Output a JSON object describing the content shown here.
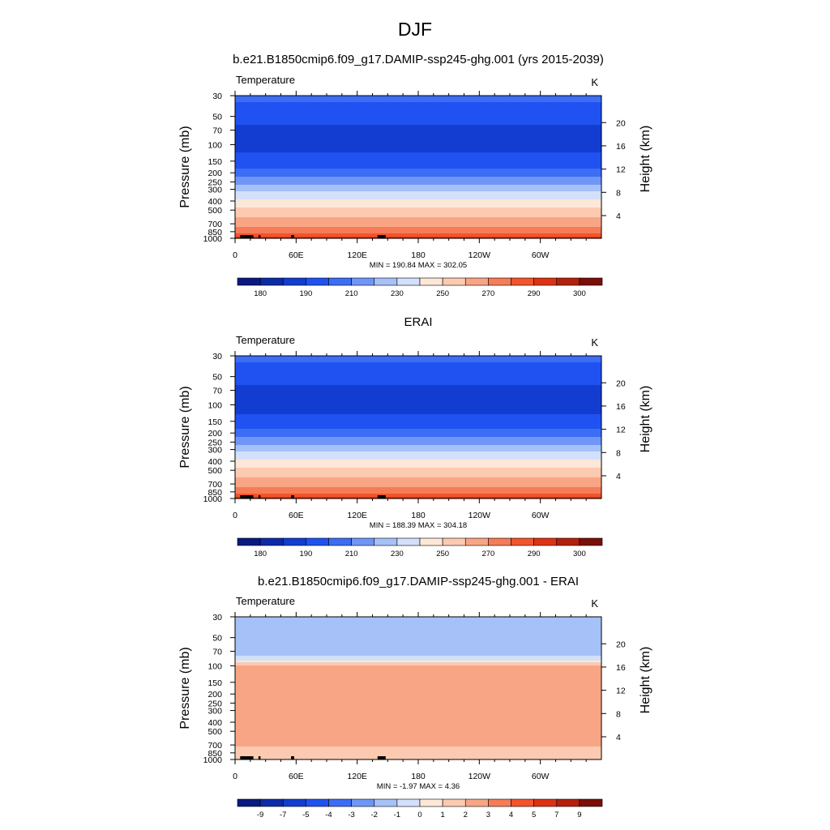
{
  "figure": {
    "title": "DJF",
    "unit": "K",
    "variable": "Temperature"
  },
  "chart_data": [
    {
      "type": "heatmap",
      "title": "b.e21.B1850cmip6.f09_g17.DAMIP-ssp245-ghg.001 (yrs 2015-2039)",
      "variable": "Temperature",
      "unit": "K",
      "xlabel": "",
      "ylabel": "Pressure (mb)",
      "y2label": "Height (km)",
      "x_ticks": [
        "0",
        "60E",
        "120E",
        "180",
        "120W",
        "60W"
      ],
      "x_tick_values": [
        0,
        60,
        120,
        180,
        240,
        300
      ],
      "xlim": [
        0,
        360
      ],
      "y_ticks": [
        "30",
        "50",
        "70",
        "100",
        "150",
        "200",
        "250",
        "300",
        "400",
        "500",
        "700",
        "850",
        "1000"
      ],
      "y_tick_values": [
        30,
        50,
        70,
        100,
        150,
        200,
        250,
        300,
        400,
        500,
        700,
        850,
        1000
      ],
      "ylim": [
        30,
        1000
      ],
      "y2_ticks": [
        "20",
        "16",
        "12",
        "8",
        "4"
      ],
      "y2_tick_values": [
        20,
        16,
        12,
        8,
        4
      ],
      "stats": "MIN = 190.84  MAX = 302.05",
      "min": 190.84,
      "max": 302.05,
      "levels": [
        180,
        185,
        190,
        200,
        210,
        220,
        230,
        240,
        250,
        260,
        270,
        280,
        290,
        295,
        300,
        305
      ],
      "level_labels": [
        "180",
        "190",
        "210",
        "230",
        "250",
        "270",
        "290",
        "300"
      ],
      "profile": [
        [
          30,
          212
        ],
        [
          50,
          205
        ],
        [
          70,
          196
        ],
        [
          100,
          196
        ],
        [
          150,
          204
        ],
        [
          200,
          214
        ],
        [
          250,
          226
        ],
        [
          300,
          237
        ],
        [
          400,
          252
        ],
        [
          500,
          262
        ],
        [
          700,
          277
        ],
        [
          850,
          286
        ],
        [
          1000,
          297
        ]
      ],
      "colors": [
        "#0a1a80",
        "#0d2aa8",
        "#123dd0",
        "#1f52f0",
        "#3c6df5",
        "#6f96f7",
        "#a6c1f8",
        "#d2e0fb",
        "#fde7d8",
        "#fbcab0",
        "#f8a585",
        "#f57c57",
        "#f2542c",
        "#de3214",
        "#b3200b",
        "#7a0e08"
      ]
    },
    {
      "type": "heatmap",
      "title": "ERAI",
      "variable": "Temperature",
      "unit": "K",
      "xlabel": "",
      "ylabel": "Pressure (mb)",
      "y2label": "Height (km)",
      "x_ticks": [
        "0",
        "60E",
        "120E",
        "180",
        "120W",
        "60W"
      ],
      "x_tick_values": [
        0,
        60,
        120,
        180,
        240,
        300
      ],
      "xlim": [
        0,
        360
      ],
      "y_ticks": [
        "30",
        "50",
        "70",
        "100",
        "150",
        "200",
        "250",
        "300",
        "400",
        "500",
        "700",
        "850",
        "1000"
      ],
      "y_tick_values": [
        30,
        50,
        70,
        100,
        150,
        200,
        250,
        300,
        400,
        500,
        700,
        850,
        1000
      ],
      "ylim": [
        30,
        1000
      ],
      "y2_ticks": [
        "20",
        "16",
        "12",
        "8",
        "4"
      ],
      "y2_tick_values": [
        20,
        16,
        12,
        8,
        4
      ],
      "stats": "MIN = 188.39  MAX = 304.18",
      "min": 188.39,
      "max": 304.18,
      "levels": [
        180,
        185,
        190,
        200,
        210,
        220,
        230,
        240,
        250,
        260,
        270,
        280,
        290,
        295,
        300,
        305
      ],
      "level_labels": [
        "180",
        "190",
        "210",
        "230",
        "250",
        "270",
        "290",
        "300"
      ],
      "profile": [
        [
          30,
          212
        ],
        [
          50,
          205
        ],
        [
          70,
          196
        ],
        [
          100,
          195
        ],
        [
          150,
          204
        ],
        [
          200,
          214
        ],
        [
          250,
          226
        ],
        [
          300,
          237
        ],
        [
          400,
          252
        ],
        [
          500,
          262
        ],
        [
          700,
          277
        ],
        [
          850,
          286
        ],
        [
          1000,
          298
        ]
      ],
      "colors": [
        "#0a1a80",
        "#0d2aa8",
        "#123dd0",
        "#1f52f0",
        "#3c6df5",
        "#6f96f7",
        "#a6c1f8",
        "#d2e0fb",
        "#fde7d8",
        "#fbcab0",
        "#f8a585",
        "#f57c57",
        "#f2542c",
        "#de3214",
        "#b3200b",
        "#7a0e08"
      ]
    },
    {
      "type": "heatmap",
      "title": "b.e21.B1850cmip6.f09_g17.DAMIP-ssp245-ghg.001 - ERAI",
      "variable": "Temperature",
      "unit": "K",
      "xlabel": "",
      "ylabel": "Pressure (mb)",
      "y2label": "Height (km)",
      "x_ticks": [
        "0",
        "60E",
        "120E",
        "180",
        "120W",
        "60W"
      ],
      "x_tick_values": [
        0,
        60,
        120,
        180,
        240,
        300
      ],
      "xlim": [
        0,
        360
      ],
      "y_ticks": [
        "30",
        "50",
        "70",
        "100",
        "150",
        "200",
        "250",
        "300",
        "400",
        "500",
        "700",
        "850",
        "1000"
      ],
      "y_tick_values": [
        30,
        50,
        70,
        100,
        150,
        200,
        250,
        300,
        400,
        500,
        700,
        850,
        1000
      ],
      "ylim": [
        30,
        1000
      ],
      "y2_ticks": [
        "20",
        "16",
        "12",
        "8",
        "4"
      ],
      "y2_tick_values": [
        20,
        16,
        12,
        8,
        4
      ],
      "stats": "MIN = -1.97  MAX =   4.36",
      "min": -1.97,
      "max": 4.36,
      "levels": [
        -10,
        -9,
        -7,
        -5,
        -4,
        -3,
        -2,
        -1,
        0,
        1,
        2,
        3,
        4,
        5,
        7,
        9,
        10
      ],
      "level_labels": [
        "-9",
        "-7",
        "-5",
        "-4",
        "-3",
        "-2",
        "-1",
        "0",
        "1",
        "2",
        "3",
        "4",
        "5",
        "7",
        "9"
      ],
      "profile": [
        [
          30,
          -1.5
        ],
        [
          50,
          -1.6
        ],
        [
          70,
          -1.5
        ],
        [
          85,
          -0.5
        ],
        [
          100,
          2.5
        ],
        [
          150,
          2.5
        ],
        [
          200,
          2.5
        ],
        [
          250,
          2.5
        ],
        [
          300,
          2.5
        ],
        [
          400,
          2.5
        ],
        [
          500,
          2.5
        ],
        [
          700,
          2.2
        ],
        [
          850,
          1.2
        ],
        [
          1000,
          1.5
        ]
      ],
      "colors": [
        "#0a1a80",
        "#0d2aa8",
        "#123dd0",
        "#1f52f0",
        "#3c6df5",
        "#6f96f7",
        "#a6c1f8",
        "#d2e0fb",
        "#fde7d8",
        "#fbcab0",
        "#f8a585",
        "#f57c57",
        "#f2542c",
        "#de3214",
        "#b3200b",
        "#7a0e08"
      ]
    }
  ]
}
